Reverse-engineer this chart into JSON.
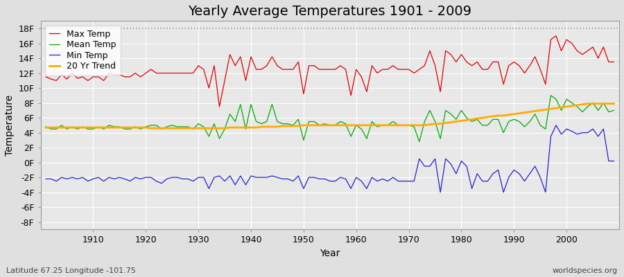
{
  "title": "Yearly Average Temperatures 1901 - 2009",
  "xlabel": "Year",
  "ylabel": "Temperature",
  "lat_lon_label": "Latitude 67.25 Longitude -101.75",
  "watermark": "worldspecies.org",
  "years": [
    1901,
    1902,
    1903,
    1904,
    1905,
    1906,
    1907,
    1908,
    1909,
    1910,
    1911,
    1912,
    1913,
    1914,
    1915,
    1916,
    1917,
    1918,
    1919,
    1920,
    1921,
    1922,
    1923,
    1924,
    1925,
    1926,
    1927,
    1928,
    1929,
    1930,
    1931,
    1932,
    1933,
    1934,
    1935,
    1936,
    1937,
    1938,
    1939,
    1940,
    1941,
    1942,
    1943,
    1944,
    1945,
    1946,
    1947,
    1948,
    1949,
    1950,
    1951,
    1952,
    1953,
    1954,
    1955,
    1956,
    1957,
    1958,
    1959,
    1960,
    1961,
    1962,
    1963,
    1964,
    1965,
    1966,
    1967,
    1968,
    1969,
    1970,
    1971,
    1972,
    1973,
    1974,
    1975,
    1976,
    1977,
    1978,
    1979,
    1980,
    1981,
    1982,
    1983,
    1984,
    1985,
    1986,
    1987,
    1988,
    1989,
    1990,
    1991,
    1992,
    1993,
    1994,
    1995,
    1996,
    1997,
    1998,
    1999,
    2000,
    2001,
    2002,
    2003,
    2004,
    2005,
    2006,
    2007,
    2008,
    2009
  ],
  "max_temp": [
    11.5,
    11.2,
    11.0,
    11.8,
    11.2,
    12.0,
    11.3,
    11.5,
    11.0,
    11.5,
    11.5,
    11.0,
    12.0,
    11.8,
    11.8,
    11.5,
    11.5,
    12.0,
    11.5,
    12.0,
    12.5,
    12.0,
    12.0,
    12.0,
    12.0,
    12.0,
    12.0,
    12.0,
    12.0,
    13.0,
    12.5,
    10.0,
    13.0,
    7.5,
    11.0,
    14.5,
    13.0,
    14.2,
    11.0,
    14.2,
    12.5,
    12.5,
    13.0,
    14.2,
    13.0,
    12.5,
    12.5,
    12.5,
    13.5,
    9.2,
    13.0,
    13.0,
    12.5,
    12.5,
    12.5,
    12.5,
    13.0,
    12.5,
    9.0,
    12.5,
    11.5,
    9.5,
    13.0,
    12.0,
    12.5,
    12.5,
    13.0,
    12.5,
    12.5,
    12.5,
    12.0,
    12.5,
    13.0,
    15.0,
    13.0,
    9.5,
    15.0,
    14.5,
    13.5,
    14.5,
    13.5,
    13.0,
    13.5,
    12.5,
    12.5,
    13.5,
    13.5,
    10.5,
    13.0,
    13.5,
    13.0,
    12.0,
    13.0,
    14.2,
    12.5,
    10.5,
    16.5,
    17.0,
    15.0,
    16.5,
    16.0,
    15.0,
    14.5,
    15.0,
    15.5,
    14.0,
    15.5,
    13.5,
    13.5
  ],
  "mean_temp": [
    4.8,
    4.5,
    4.5,
    5.0,
    4.5,
    4.8,
    4.5,
    4.8,
    4.5,
    4.5,
    4.8,
    4.5,
    5.0,
    4.8,
    4.8,
    4.5,
    4.5,
    4.8,
    4.5,
    4.8,
    5.0,
    5.0,
    4.5,
    4.8,
    5.0,
    4.8,
    4.8,
    4.8,
    4.5,
    5.2,
    4.8,
    3.5,
    5.2,
    3.2,
    4.5,
    6.5,
    5.5,
    7.8,
    4.5,
    7.8,
    5.5,
    5.2,
    5.5,
    7.8,
    5.5,
    5.2,
    5.2,
    5.0,
    5.8,
    3.0,
    5.5,
    5.5,
    5.0,
    5.2,
    5.0,
    5.0,
    5.5,
    5.2,
    3.5,
    5.0,
    4.5,
    3.2,
    5.5,
    4.8,
    5.0,
    5.0,
    5.5,
    5.0,
    5.0,
    5.0,
    4.8,
    2.8,
    5.5,
    7.0,
    5.5,
    3.2,
    7.0,
    6.5,
    5.8,
    7.0,
    6.0,
    5.5,
    5.8,
    5.0,
    5.0,
    5.8,
    5.8,
    4.0,
    5.5,
    5.8,
    5.5,
    4.8,
    5.5,
    6.5,
    5.0,
    4.5,
    9.0,
    8.5,
    7.0,
    8.5,
    8.0,
    7.5,
    6.8,
    7.5,
    8.0,
    7.0,
    8.0,
    6.8,
    7.0
  ],
  "min_temp": [
    -2.2,
    -2.2,
    -2.5,
    -2.0,
    -2.2,
    -2.0,
    -2.2,
    -2.0,
    -2.5,
    -2.2,
    -2.0,
    -2.5,
    -2.0,
    -2.2,
    -2.0,
    -2.2,
    -2.5,
    -2.0,
    -2.2,
    -2.0,
    -2.0,
    -2.5,
    -2.8,
    -2.2,
    -2.0,
    -2.0,
    -2.2,
    -2.2,
    -2.5,
    -2.0,
    -2.0,
    -3.5,
    -2.0,
    -1.8,
    -2.5,
    -1.8,
    -3.0,
    -1.8,
    -3.0,
    -1.8,
    -2.0,
    -2.0,
    -2.0,
    -1.8,
    -2.0,
    -2.2,
    -2.2,
    -2.5,
    -1.8,
    -3.5,
    -2.0,
    -2.0,
    -2.2,
    -2.2,
    -2.5,
    -2.5,
    -2.0,
    -2.2,
    -3.5,
    -2.0,
    -2.5,
    -3.5,
    -2.0,
    -2.5,
    -2.2,
    -2.5,
    -2.0,
    -2.5,
    -2.5,
    -2.5,
    -2.5,
    0.5,
    -0.5,
    -0.5,
    0.5,
    -4.0,
    0.5,
    -0.2,
    -1.5,
    0.2,
    -0.5,
    -3.5,
    -1.5,
    -2.5,
    -2.5,
    -1.5,
    -1.0,
    -4.0,
    -2.0,
    -1.0,
    -1.5,
    -2.5,
    -1.5,
    -0.5,
    -2.0,
    -4.0,
    3.5,
    5.0,
    3.8,
    4.5,
    4.2,
    3.8,
    4.0,
    4.0,
    4.5,
    3.5,
    4.5,
    0.2,
    0.2
  ],
  "trend_20yr": [
    4.7,
    4.7,
    4.7,
    4.7,
    4.7,
    4.7,
    4.7,
    4.7,
    4.7,
    4.7,
    4.7,
    4.7,
    4.7,
    4.7,
    4.7,
    4.7,
    4.7,
    4.7,
    4.7,
    4.7,
    4.6,
    4.6,
    4.6,
    4.6,
    4.6,
    4.6,
    4.6,
    4.6,
    4.6,
    4.6,
    4.6,
    4.6,
    4.6,
    4.6,
    4.6,
    4.7,
    4.7,
    4.7,
    4.7,
    4.7,
    4.7,
    4.8,
    4.8,
    4.8,
    4.8,
    4.9,
    4.9,
    4.9,
    4.9,
    5.0,
    5.0,
    5.0,
    5.0,
    5.0,
    5.0,
    5.0,
    5.0,
    5.0,
    5.0,
    5.0,
    5.0,
    5.0,
    5.0,
    5.0,
    5.0,
    5.0,
    5.0,
    5.0,
    5.0,
    5.0,
    5.0,
    5.0,
    5.0,
    5.1,
    5.2,
    5.2,
    5.3,
    5.4,
    5.5,
    5.6,
    5.7,
    5.8,
    5.9,
    6.0,
    6.1,
    6.2,
    6.3,
    6.3,
    6.4,
    6.5,
    6.6,
    6.7,
    6.8,
    6.9,
    7.0,
    7.1,
    7.2,
    7.3,
    7.4,
    7.5,
    7.6,
    7.7,
    7.8,
    7.9,
    7.9,
    7.9,
    7.9,
    7.9,
    7.9
  ],
  "ylim": [
    -9,
    19
  ],
  "yticks": [
    -8,
    -6,
    -4,
    -2,
    0,
    2,
    4,
    6,
    8,
    10,
    12,
    14,
    16,
    18
  ],
  "xticks": [
    1910,
    1920,
    1930,
    1940,
    1950,
    1960,
    1970,
    1980,
    1990,
    2000
  ],
  "bg_color": "#e0e0e0",
  "plot_bg_color": "#e8e8e8",
  "max_color": "#dd0000",
  "mean_color": "#00aa00",
  "min_color": "#2222cc",
  "trend_color": "#ffaa00",
  "dashed_line_y": 18,
  "dashed_color": "#888888",
  "grid_color": "#ffffff",
  "title_fontsize": 14,
  "axis_label_fontsize": 10,
  "tick_label_fontsize": 9,
  "legend_fontsize": 9
}
